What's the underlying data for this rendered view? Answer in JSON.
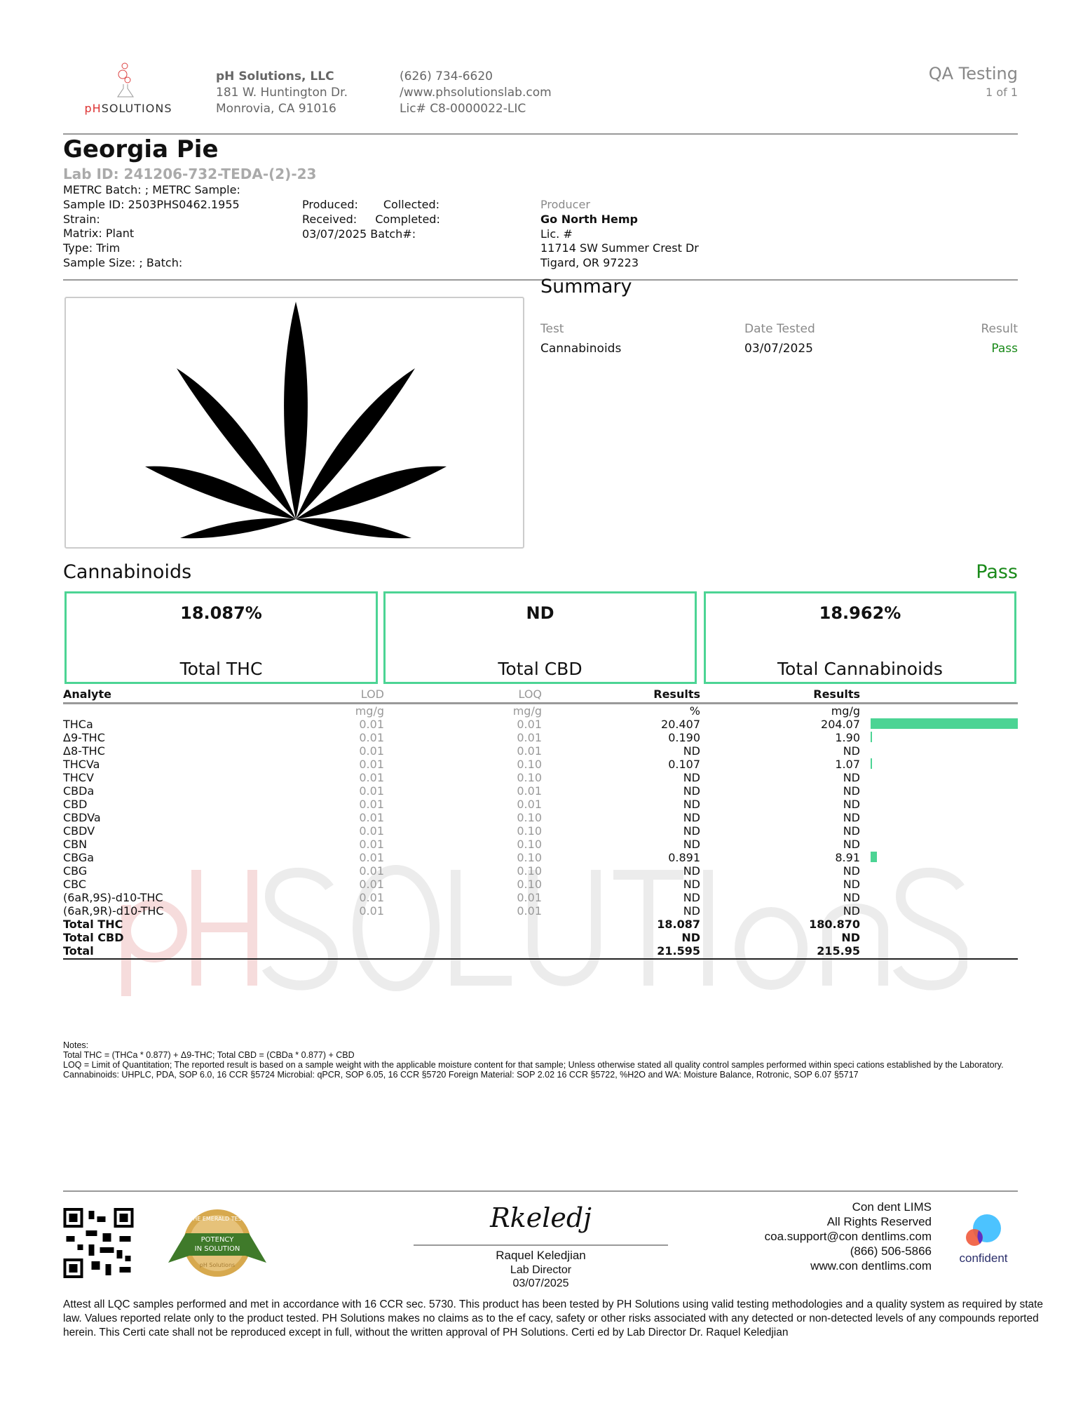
{
  "header": {
    "logo_text": "pHSOLUTIONS",
    "company": "pH Solutions, LLC",
    "address1": "181 W. Huntington Dr.",
    "address2": "Monrovia, CA 91016",
    "phone": "(626) 734-6620",
    "website": "/www.phsolutionslab.com",
    "license": "Lic# C8-0000022-LIC",
    "doc_type": "QA Testing",
    "page": "1 of 1"
  },
  "sample": {
    "name": "Georgia Pie",
    "lab_id": "Lab ID: 241206-732-TEDA-(2)-23",
    "metrc": "METRC Batch: ; METRC Sample:",
    "sample_id": "Sample ID: 2503PHS0462.1955",
    "strain": "Strain:",
    "matrix": "Matrix: Plant",
    "type": "Type: Trim",
    "size": "Sample Size: ; Batch:",
    "produced": "Produced:",
    "collected": "Collected:",
    "received": "Received:",
    "completed": "Completed:",
    "date_batch": "03/07/2025 Batch#:"
  },
  "producer": {
    "label": "Producer",
    "name": "Go North Hemp",
    "lic": "Lic. #",
    "street": "11714 SW Summer Crest Dr",
    "city": "Tigard, OR 97223"
  },
  "summary": {
    "title": "Summary",
    "headers": [
      "Test",
      "Date Tested",
      "Result"
    ],
    "rows": [
      {
        "test": "Cannabinoids",
        "date": "03/07/2025",
        "result": "Pass"
      }
    ]
  },
  "cannabinoids": {
    "title": "Cannabinoids",
    "status": "Pass",
    "accent": "#4cd494",
    "pass_color": "#1a8a1a",
    "boxes": [
      {
        "value": "18.087%",
        "label": "Total THC"
      },
      {
        "value": "ND",
        "label": "Total CBD"
      },
      {
        "value": "18.962%",
        "label": "Total Cannabinoids"
      }
    ],
    "headers": [
      "Analyte",
      "LOD",
      "LOQ",
      "Results",
      "Results"
    ],
    "units": [
      "",
      "mg/g",
      "mg/g",
      "%",
      "mg/g"
    ],
    "rows": [
      [
        "THCa",
        "0.01",
        "0.01",
        "20.407",
        "204.07",
        204.07
      ],
      [
        "Δ9-THC",
        "0.01",
        "0.01",
        "0.190",
        "1.90",
        1.9
      ],
      [
        "Δ8-THC",
        "0.01",
        "0.01",
        "ND",
        "ND",
        0
      ],
      [
        "THCVa",
        "0.01",
        "0.10",
        "0.107",
        "1.07",
        1.07
      ],
      [
        "THCV",
        "0.01",
        "0.10",
        "ND",
        "ND",
        0
      ],
      [
        "CBDa",
        "0.01",
        "0.01",
        "ND",
        "ND",
        0
      ],
      [
        "CBD",
        "0.01",
        "0.01",
        "ND",
        "ND",
        0
      ],
      [
        "CBDVa",
        "0.01",
        "0.10",
        "ND",
        "ND",
        0
      ],
      [
        "CBDV",
        "0.01",
        "0.10",
        "ND",
        "ND",
        0
      ],
      [
        "CBN",
        "0.01",
        "0.10",
        "ND",
        "ND",
        0
      ],
      [
        "CBGa",
        "0.01",
        "0.10",
        "0.891",
        "8.91",
        8.91
      ],
      [
        "CBG",
        "0.01",
        "0.10",
        "ND",
        "ND",
        0
      ],
      [
        "CBC",
        "0.01",
        "0.10",
        "ND",
        "ND",
        0
      ],
      [
        "(6aR,9S)-d10-THC",
        "0.01",
        "0.01",
        "ND",
        "ND",
        0
      ],
      [
        "(6aR,9R)-d10-THC",
        "0.01",
        "0.01",
        "ND",
        "ND",
        0
      ]
    ],
    "totals": [
      [
        "Total THC",
        "18.087",
        "180.870"
      ],
      [
        "Total CBD",
        "ND",
        "ND"
      ],
      [
        "Total",
        "21.595",
        "215.95"
      ]
    ]
  },
  "notes": {
    "title": "Notes:",
    "line1": "Total THC = (THCa * 0.877) + Δ9-THC; Total CBD = (CBDa * 0.877) + CBD",
    "line2": "LOQ = Limit of Quantitation; The reported result is based on a sample weight with the applicable moisture content for that sample; Unless otherwise stated all quality control samples performed within speci cations established by the Laboratory. Cannabinoids: UHPLC, PDA, SOP 6.0, 16 CCR §5724 Microbial: qPCR, SOP 6.05, 16 CCR §5720 Foreign Material: SOP 2.02 16 CCR §5722, %H2O and WA: Moisture Balance, Rotronic, SOP 6.07 §5717"
  },
  "signature": {
    "sig": "Rkeledj",
    "name": "Raquel Keledjian",
    "title": "Lab Director",
    "date": "03/07/2025"
  },
  "seal": {
    "top": "THE EMERALD TEST",
    "ribbon": "POTENCY IN SOLUTION",
    "bottom": "pH Solutions"
  },
  "lims": {
    "name": "Con dent LIMS",
    "rights": "All Rights Reserved",
    "email": "coa.support@con dentlims.com",
    "phone": "(866) 506-5866",
    "web": "www.con dentlims.com",
    "logo": "confident"
  },
  "footer": "Attest all LQC samples performed and met in accordance with 16 CCR sec. 5730. This product has been tested by PH Solutions using valid testing methodologies and a quality system as required by state law. Values reported relate only to the product tested. PH Solutions makes no claims as to the ef cacy, safety or other risks associated with any detected or non-detected levels of any compounds reported herein. This Certi cate shall not be reproduced except in full, without the written approval of PH Solutions. Certi ed by Lab Director Dr. Raquel Keledjian",
  "watermark": "pHSOLUTIONS"
}
